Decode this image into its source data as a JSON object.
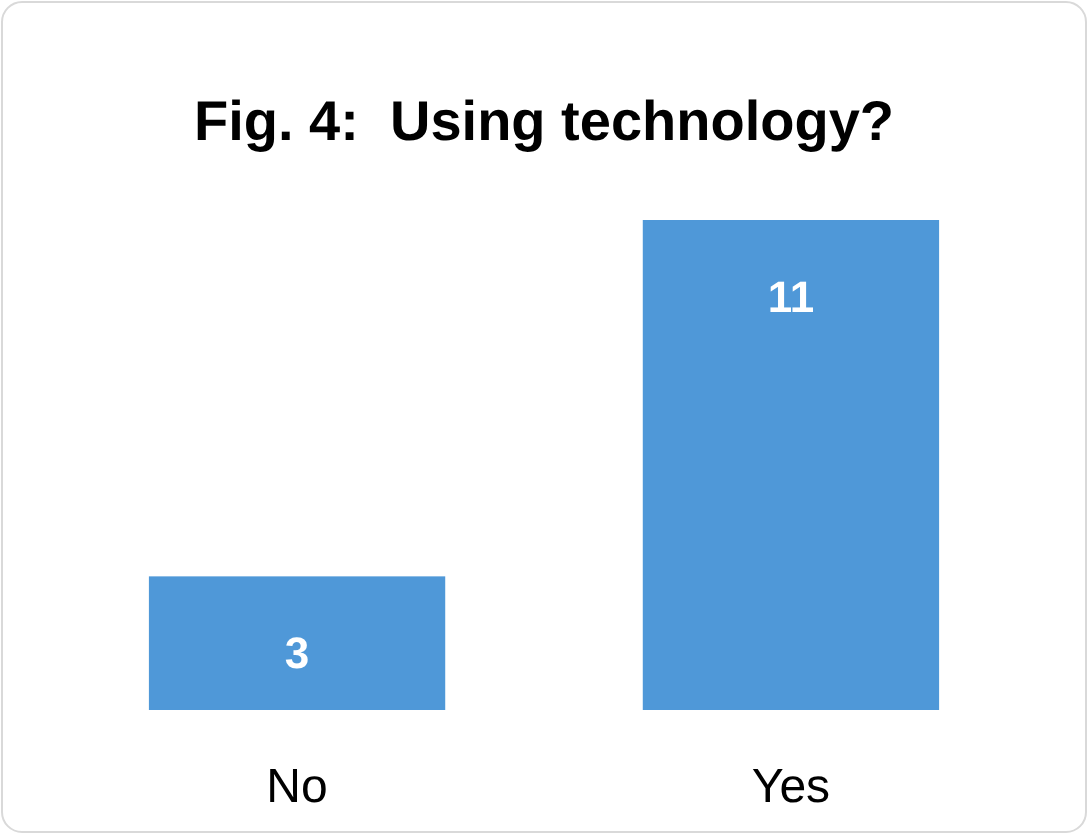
{
  "chart_data": {
    "type": "bar",
    "title": "Fig. 4:  Using technology?",
    "categories": [
      "No",
      "Yes"
    ],
    "values": [
      3,
      11
    ],
    "color": "#4f98d8",
    "data_labels": true
  }
}
